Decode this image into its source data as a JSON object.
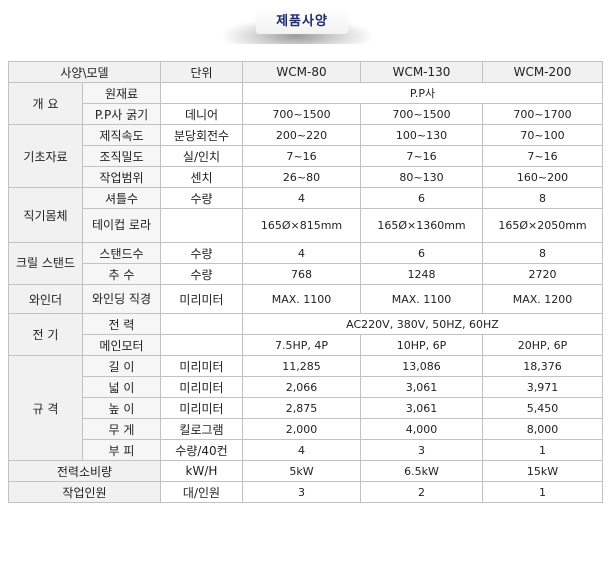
{
  "title": "제품사양",
  "header": {
    "spec_model": "사양\\모델",
    "unit": "단위",
    "models": [
      "WCM-80",
      "WCM-130",
      "WCM-200"
    ]
  },
  "groups": {
    "overview": "개 요",
    "basic": "기초자료",
    "loom": "직기몸체",
    "creel": "크릴 스탠드",
    "winder": "와인더",
    "electric": "전 기",
    "dimension": "규 격",
    "power": "전력소비량",
    "workers": "작업인원"
  },
  "rows": {
    "material": {
      "label": "원재료",
      "unit": "",
      "value": "P.P사"
    },
    "thickness": {
      "label": "P.P사 굵기",
      "unit": "데니어",
      "values": [
        "700~1500",
        "700~1500",
        "700~1700"
      ]
    },
    "speed": {
      "label": "제직속도",
      "unit": "분당회전수",
      "values": [
        "200~220",
        "100~130",
        "70~100"
      ]
    },
    "density": {
      "label": "조직밀도",
      "unit": "실/인치",
      "values": [
        "7~16",
        "7~16",
        "7~16"
      ]
    },
    "work_range": {
      "label": "작업범위",
      "unit": "센치",
      "values": [
        "26~80",
        "80~130",
        "160~200"
      ]
    },
    "shuttles": {
      "label": "셔틀수",
      "unit": "수량",
      "values": [
        "4",
        "6",
        "8"
      ]
    },
    "takeup": {
      "label": "테이컵 로라",
      "unit": "",
      "values": [
        "165Ø×815mm",
        "165Ø×1360mm",
        "165Ø×2050mm"
      ]
    },
    "stands": {
      "label": "스탠드수",
      "unit": "수량",
      "values": [
        "4",
        "6",
        "8"
      ]
    },
    "spindles": {
      "label": "추 수",
      "unit": "수량",
      "values": [
        "768",
        "1248",
        "2720"
      ]
    },
    "winding": {
      "label": "와인딩 직경",
      "unit": "미리미터",
      "values": [
        "MAX. 1100",
        "MAX. 1100",
        "MAX. 1200"
      ]
    },
    "power_supply": {
      "label": "전 력",
      "unit": "",
      "value": "AC220V, 380V, 50HZ, 60HZ"
    },
    "motor": {
      "label": "메인모터",
      "unit": "",
      "values": [
        "7.5HP, 4P",
        "10HP, 6P",
        "20HP, 6P"
      ]
    },
    "length": {
      "label": "길 이",
      "unit": "미리미터",
      "values": [
        "11,285",
        "13,086",
        "18,376"
      ]
    },
    "width": {
      "label": "넓 이",
      "unit": "미리미터",
      "values": [
        "2,066",
        "3,061",
        "3,971"
      ]
    },
    "height": {
      "label": "높 이",
      "unit": "미리미터",
      "values": [
        "2,875",
        "3,061",
        "5,450"
      ]
    },
    "weight": {
      "label": "무 게",
      "unit": "킬로그램",
      "values": [
        "2,000",
        "4,000",
        "8,000"
      ]
    },
    "volume": {
      "label": "부 피",
      "unit": "수량/40컨",
      "values": [
        "4",
        "3",
        "1"
      ]
    },
    "consumption": {
      "unit": "kW/H",
      "values": [
        "5kW",
        "6.5kW",
        "15kW"
      ]
    },
    "staff": {
      "unit": "대/인원",
      "values": [
        "3",
        "2",
        "1"
      ]
    }
  }
}
